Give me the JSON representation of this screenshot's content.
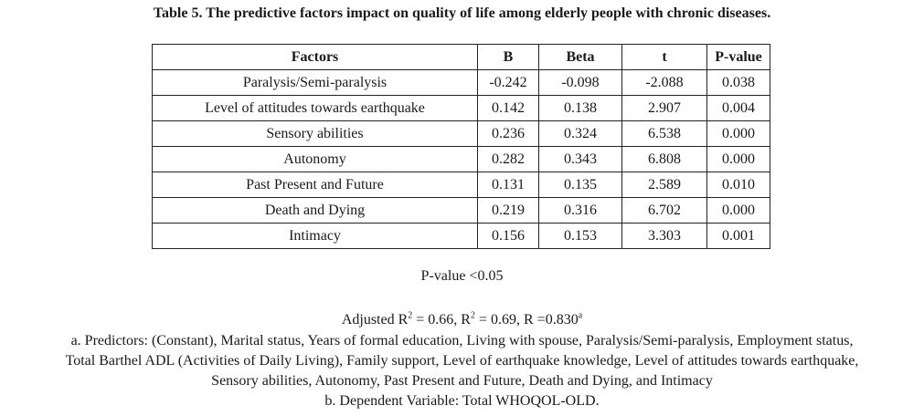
{
  "title": "Table 5. The predictive factors impact on quality of life among elderly people with chronic diseases.",
  "table": {
    "headers": [
      "Factors",
      "B",
      "Beta",
      "t",
      "P-value"
    ],
    "rows": [
      [
        "Paralysis/Semi-paralysis",
        "-0.242",
        "-0.098",
        "-2.088",
        "0.038"
      ],
      [
        "Level of attitudes towards earthquake",
        "0.142",
        "0.138",
        "2.907",
        "0.004"
      ],
      [
        "Sensory abilities",
        "0.236",
        "0.324",
        "6.538",
        "0.000"
      ],
      [
        "Autonomy",
        "0.282",
        "0.343",
        "6.808",
        "0.000"
      ],
      [
        "Past Present and Future",
        "0.131",
        "0.135",
        "2.589",
        "0.010"
      ],
      [
        "Death and Dying",
        "0.219",
        "0.316",
        "6.702",
        "0.000"
      ],
      [
        "Intimacy",
        "0.156",
        "0.153",
        "3.303",
        "0.001"
      ]
    ]
  },
  "pvalue_note": "P-value <0.05",
  "footnotes": {
    "adjusted_r2_label": "Adjusted R",
    "adjusted_r2_value": " = 0.66, R",
    "r2_value": " = 0.69, R =0.830",
    "sup_2": "2",
    "sup_a": "a",
    "predictors_line1": "a. Predictors: (Constant), Marital status, Years of formal education, Living with spouse, Paralysis/Semi-paralysis, Employment status,",
    "predictors_line2": "Total Barthel ADL (Activities of Daily Living), Family support, Level of earthquake knowledge, Level of attitudes towards earthquake,",
    "predictors_line3": "Sensory abilities, Autonomy, Past Present and Future, Death and Dying, and Intimacy",
    "dependent": "b. Dependent Variable: Total WHOQOL-OLD."
  }
}
